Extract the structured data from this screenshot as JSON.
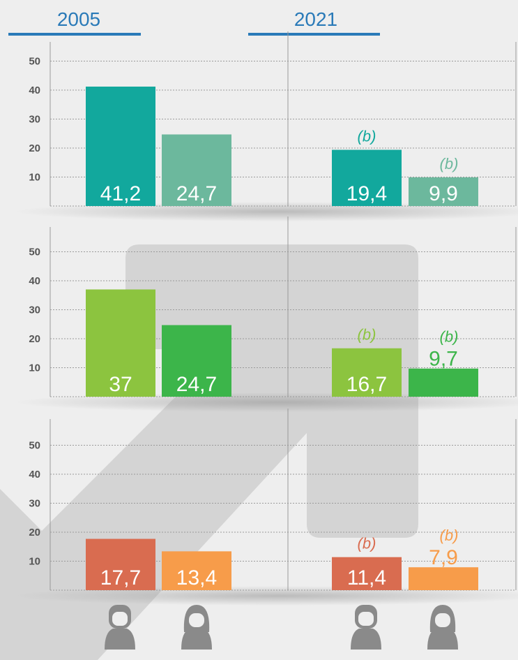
{
  "header": {
    "categories": [
      "2005",
      "2021"
    ]
  },
  "annotation": "(b)",
  "chart_data": [
    {
      "type": "bar",
      "ylim": [
        0,
        55
      ],
      "yticks": [
        10,
        20,
        30,
        40,
        50
      ],
      "grid": true,
      "series": [
        {
          "color": "#12a89d",
          "values": [
            41.2,
            19.4
          ],
          "value_labels": [
            "41,2",
            "19,4"
          ]
        },
        {
          "color": "#6cb89d",
          "values": [
            24.7,
            9.9
          ],
          "value_labels": [
            "24,7",
            "9,9"
          ]
        }
      ]
    },
    {
      "type": "bar",
      "ylim": [
        0,
        55
      ],
      "yticks": [
        10,
        20,
        30,
        40,
        50
      ],
      "grid": true,
      "series": [
        {
          "color": "#8cc43f",
          "values": [
            37,
            16.7
          ],
          "value_labels": [
            "37",
            "16,7"
          ]
        },
        {
          "color": "#3cb54a",
          "values": [
            24.7,
            9.7
          ],
          "value_labels": [
            "24,7",
            "9,7"
          ]
        }
      ]
    },
    {
      "type": "bar",
      "ylim": [
        0,
        55
      ],
      "yticks": [
        10,
        20,
        30,
        40,
        50
      ],
      "grid": true,
      "series": [
        {
          "color": "#d96c50",
          "values": [
            17.7,
            11.4
          ],
          "value_labels": [
            "17,7",
            "11,4"
          ]
        },
        {
          "color": "#f79c4a",
          "values": [
            13.4,
            7.9
          ],
          "value_labels": [
            "13,4",
            "7,9"
          ]
        }
      ]
    }
  ]
}
